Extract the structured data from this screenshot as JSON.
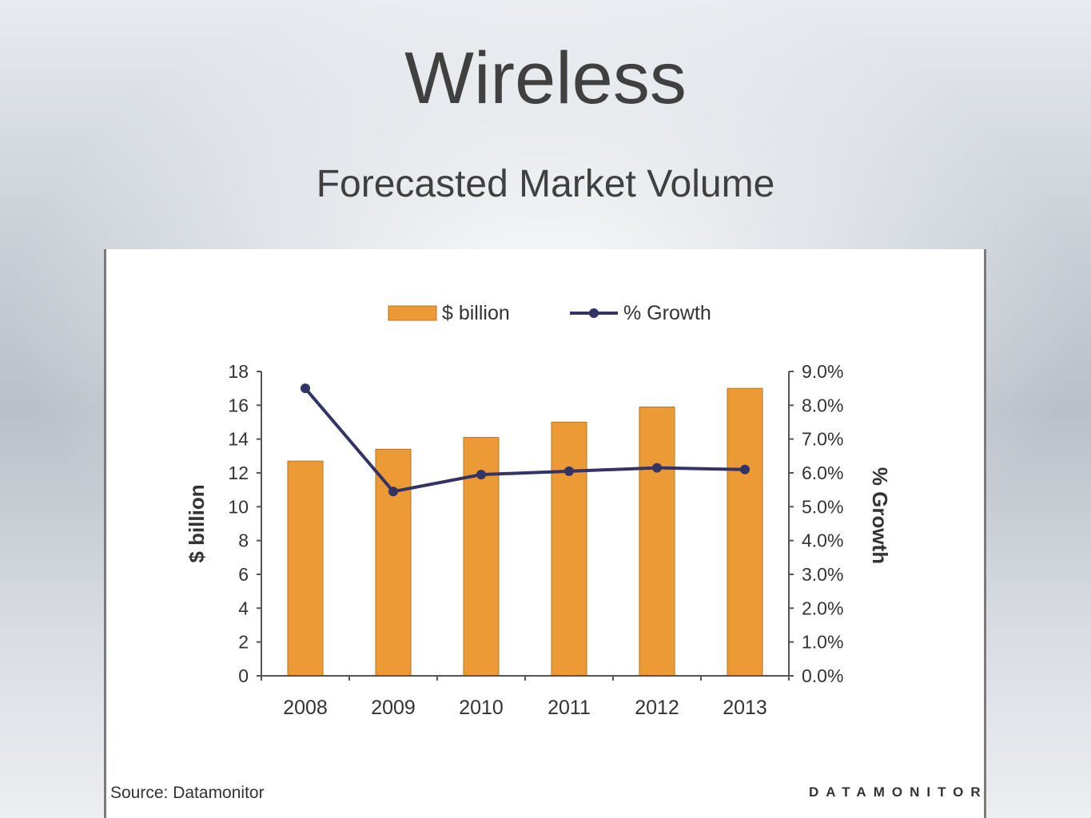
{
  "slide": {
    "title": "Wireless",
    "subtitle": "Forecasted Market Volume"
  },
  "footer": {
    "source": "Source: Datamonitor",
    "brand": "DATAMONITOR"
  },
  "colors": {
    "bar": "#ec9a35",
    "bar_border": "#b9731e",
    "line": "#333366",
    "axis": "#555555",
    "text": "#333333"
  },
  "chart_data": {
    "type": "bar",
    "categories": [
      "2008",
      "2009",
      "2010",
      "2011",
      "2012",
      "2013"
    ],
    "series": [
      {
        "name": "$ billion",
        "type": "bar",
        "axis": "left",
        "values": [
          12.7,
          13.4,
          14.1,
          15.0,
          15.9,
          17.0
        ]
      },
      {
        "name": "% Growth",
        "type": "line",
        "axis": "right",
        "values": [
          8.5,
          5.45,
          5.95,
          6.05,
          6.15,
          6.1
        ]
      }
    ],
    "y_left": {
      "label": "$ billion",
      "range": [
        0,
        18
      ],
      "ticks": [
        "0",
        "2",
        "4",
        "6",
        "8",
        "10",
        "12",
        "14",
        "16",
        "18"
      ]
    },
    "y_right": {
      "label": "% Growth",
      "range": [
        0,
        9
      ],
      "ticks": [
        "0.0%",
        "1.0%",
        "2.0%",
        "3.0%",
        "4.0%",
        "5.0%",
        "6.0%",
        "7.0%",
        "8.0%",
        "9.0%"
      ]
    },
    "legend": {
      "position": "top",
      "items": [
        "$ billion",
        "% Growth"
      ]
    },
    "grid": false
  }
}
